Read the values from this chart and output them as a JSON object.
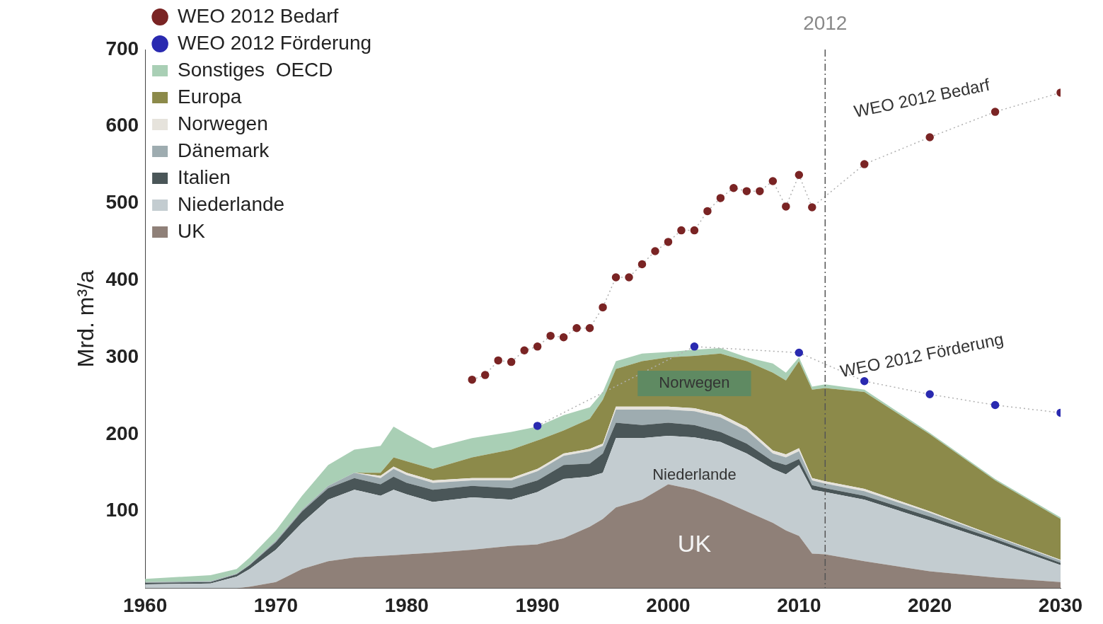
{
  "chart_data": {
    "type": "area",
    "ylabel": "Mrd. m³/a",
    "xlim": [
      1960,
      2030
    ],
    "xticks": [
      1960,
      1970,
      1980,
      1990,
      2000,
      2010,
      2020,
      2030
    ],
    "ylim": [
      0,
      700
    ],
    "yticks": [
      100,
      200,
      300,
      400,
      500,
      600,
      700
    ],
    "stacked": true,
    "grid": false,
    "legend": "top left",
    "series": [
      {
        "name": "WEO 2012 Bedarf",
        "type": "line",
        "marker": "circle",
        "line_style": "dotted",
        "color": "#7a2424",
        "x": [
          1985,
          1986,
          1987,
          1988,
          1989,
          1990,
          1991,
          1992,
          1993,
          1994,
          1995,
          1996,
          1997,
          1998,
          1999,
          2000,
          2001,
          2002,
          2003,
          2004,
          2005,
          2006,
          2007,
          2008,
          2009,
          2010,
          2011,
          2015,
          2020,
          2025,
          2030
        ],
        "values": [
          271,
          277,
          296,
          294,
          309,
          314,
          328,
          326,
          338,
          338,
          365,
          404,
          404,
          421,
          438,
          450,
          465,
          465,
          490,
          507,
          520,
          516,
          516,
          529,
          496,
          537,
          495,
          551,
          586,
          619,
          644
        ]
      },
      {
        "name": "WEO 2012 Förderung",
        "type": "line",
        "marker": "circle",
        "line_style": "dotted",
        "color": "#2a2ab0",
        "x": [
          1990,
          2002,
          2010,
          2015,
          2020,
          2025,
          2030
        ],
        "values": [
          211,
          314,
          306,
          269,
          252,
          238,
          228
        ]
      },
      {
        "name": "UK",
        "color": "#8f8078",
        "x": [
          1960,
          1965,
          1967,
          1968,
          1970,
          1972,
          1974,
          1976,
          1978,
          1979,
          1980,
          1982,
          1985,
          1988,
          1990,
          1992,
          1994,
          1995,
          1996,
          1998,
          2000,
          2002,
          2004,
          2006,
          2008,
          2009,
          2010,
          2011,
          2012,
          2015,
          2020,
          2025,
          2030
        ],
        "values": [
          0,
          0,
          0,
          2,
          8,
          25,
          35,
          40,
          42,
          43,
          44,
          46,
          50,
          55,
          57,
          65,
          80,
          90,
          105,
          115,
          135,
          128,
          115,
          100,
          85,
          75,
          68,
          45,
          44,
          35,
          22,
          14,
          8
        ]
      },
      {
        "name": "Niederlande",
        "color": "#c3ccd0",
        "x": [
          1960,
          1965,
          1967,
          1968,
          1970,
          1972,
          1974,
          1976,
          1978,
          1979,
          1980,
          1982,
          1985,
          1988,
          1990,
          1992,
          1994,
          1995,
          1996,
          1998,
          2000,
          2002,
          2004,
          2006,
          2008,
          2009,
          2010,
          2011,
          2012,
          2015,
          2020,
          2025,
          2030
        ],
        "values": [
          5,
          6,
          15,
          23,
          42,
          60,
          80,
          88,
          78,
          85,
          78,
          66,
          68,
          60,
          68,
          77,
          65,
          60,
          90,
          80,
          63,
          68,
          75,
          75,
          70,
          73,
          92,
          83,
          81,
          80,
          66,
          46,
          22
        ]
      },
      {
        "name": "Italien",
        "color": "#4a5658",
        "x": [
          1960,
          1965,
          1967,
          1968,
          1970,
          1972,
          1974,
          1976,
          1978,
          1979,
          1980,
          1982,
          1985,
          1988,
          1990,
          1992,
          1994,
          1995,
          1996,
          1998,
          2000,
          2002,
          2004,
          2006,
          2008,
          2009,
          2010,
          2011,
          2012,
          2015,
          2020,
          2025,
          2030
        ],
        "values": [
          2,
          2,
          3,
          5,
          10,
          15,
          15,
          15,
          15,
          17,
          15,
          16,
          15,
          15,
          15,
          18,
          17,
          25,
          20,
          17,
          17,
          16,
          13,
          13,
          10,
          12,
          8,
          6,
          5,
          5,
          5,
          4,
          3
        ]
      },
      {
        "name": "Dänemark",
        "color": "#9eacb0",
        "x": [
          1960,
          1965,
          1967,
          1968,
          1970,
          1972,
          1974,
          1976,
          1978,
          1979,
          1980,
          1982,
          1985,
          1988,
          1990,
          1992,
          1994,
          1995,
          1996,
          1998,
          2000,
          2002,
          2004,
          2006,
          2008,
          2009,
          2010,
          2011,
          2012,
          2015,
          2020,
          2025,
          2030
        ],
        "values": [
          1,
          1,
          1,
          1,
          2,
          2,
          3,
          7,
          8,
          10,
          10,
          9,
          7,
          10,
          12,
          12,
          16,
          10,
          17,
          20,
          17,
          18,
          19,
          17,
          10,
          10,
          10,
          6,
          6,
          6,
          5,
          3,
          3
        ]
      },
      {
        "name": "Norwegen",
        "color": "#e6e3dc",
        "x": [
          1960,
          1965,
          1967,
          1968,
          1970,
          1972,
          1974,
          1976,
          1978,
          1979,
          1980,
          1982,
          1985,
          1988,
          1990,
          1992,
          1994,
          1995,
          1996,
          1998,
          2000,
          2002,
          2004,
          2006,
          2008,
          2009,
          2010,
          2011,
          2012,
          2015,
          2020,
          2025,
          2030
        ],
        "values": [
          0,
          0,
          0,
          0,
          0,
          0,
          0,
          0,
          3,
          3,
          3,
          3,
          3,
          3,
          3,
          3,
          3,
          3,
          4,
          4,
          4,
          4,
          4,
          4,
          4,
          4,
          4,
          3,
          3,
          3,
          2,
          1,
          1
        ]
      },
      {
        "name": "Europa",
        "color": "#8c8a4a",
        "x": [
          1960,
          1965,
          1967,
          1968,
          1970,
          1972,
          1974,
          1976,
          1978,
          1979,
          1980,
          1982,
          1985,
          1988,
          1990,
          1992,
          1994,
          1995,
          1996,
          1998,
          2000,
          2002,
          2004,
          2006,
          2008,
          2009,
          2010,
          2011,
          2012,
          2015,
          2020,
          2025,
          2030
        ],
        "values": [
          0,
          0,
          0,
          0,
          0,
          0,
          0,
          0,
          4,
          12,
          15,
          15,
          27,
          37,
          37,
          30,
          39,
          57,
          49,
          59,
          64,
          68,
          79,
          86,
          101,
          96,
          113,
          115,
          121,
          126,
          100,
          72,
          53
        ]
      },
      {
        "name": "Sonstiges  OECD",
        "color": "#a9cfb5",
        "x": [
          1960,
          1965,
          1967,
          1968,
          1970,
          1972,
          1974,
          1976,
          1978,
          1979,
          1980,
          1982,
          1985,
          1988,
          1990,
          1992,
          1994,
          1995,
          1996,
          1998,
          2000,
          2002,
          2004,
          2006,
          2008,
          2009,
          2010,
          2011,
          2012,
          2015,
          2020,
          2025,
          2030
        ],
        "values": [
          4,
          8,
          6,
          9,
          13,
          18,
          27,
          30,
          35,
          40,
          35,
          27,
          25,
          23,
          18,
          20,
          15,
          10,
          10,
          10,
          7,
          8,
          7,
          5,
          12,
          10,
          5,
          4,
          5,
          3,
          2,
          2,
          2
        ]
      }
    ],
    "ref_lines": [
      {
        "axis": "x",
        "value": 2012,
        "label": "2012",
        "line_style": "dashdot"
      }
    ],
    "annotations": [
      "Norwegen",
      "Niederlande",
      "UK",
      {
        "text": "WEO 2012 Bedarf",
        "x": 2020,
        "y": 586
      },
      {
        "text": "WEO 2012 Förderung",
        "x": 2020,
        "y": 252
      }
    ]
  }
}
